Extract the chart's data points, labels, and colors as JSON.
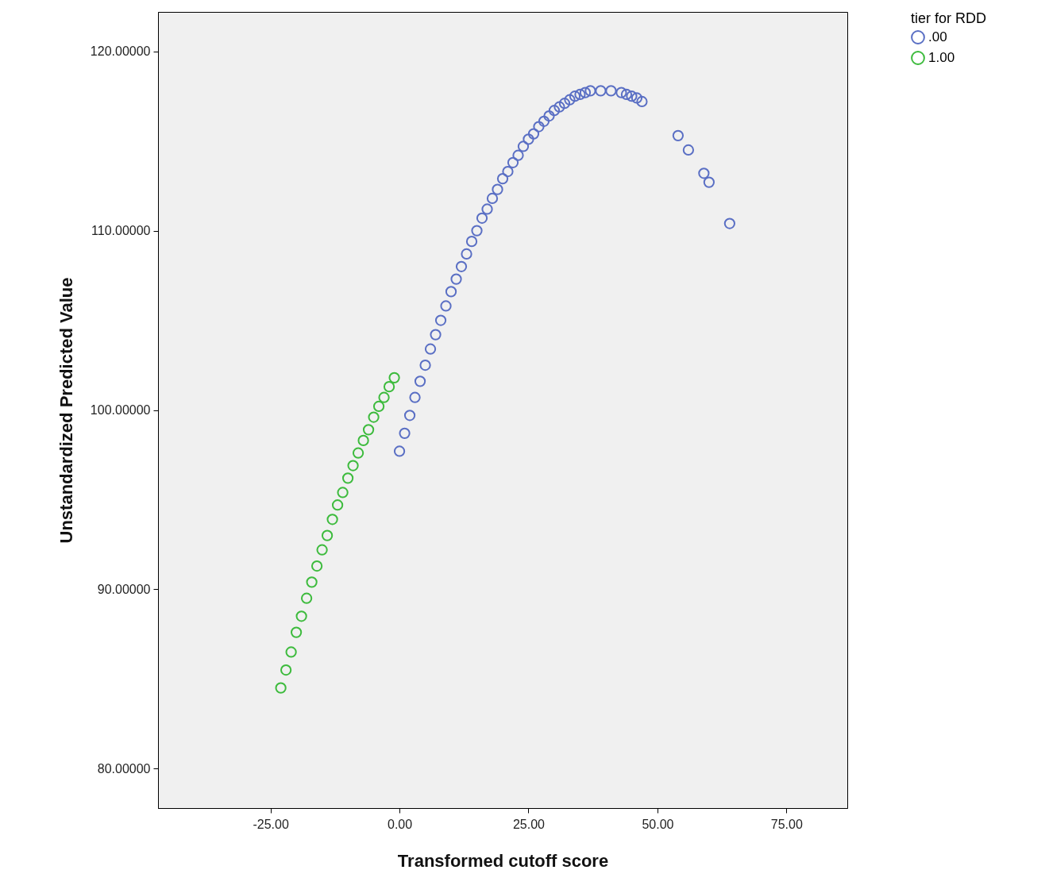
{
  "chart_data": {
    "type": "scatter",
    "xlabel": "Transformed cutoff score",
    "ylabel": "Unstandardized Predicted Value",
    "legend_title": "tier for RDD",
    "legend": "top right",
    "marker": "circle",
    "grid": false,
    "xlim": [
      -46.8,
      86.8
    ],
    "ylim": [
      77.8,
      122.2
    ],
    "xticks": [
      {
        "value": -25,
        "label": "-25.00"
      },
      {
        "value": 0,
        "label": "0.00"
      },
      {
        "value": 25,
        "label": "25.00"
      },
      {
        "value": 50,
        "label": "50.00"
      },
      {
        "value": 75,
        "label": "75.00"
      }
    ],
    "yticks": [
      {
        "value": 80,
        "label": "80.00000"
      },
      {
        "value": 90,
        "label": "90.00000"
      },
      {
        "value": 100,
        "label": "100.00000"
      },
      {
        "value": 110,
        "label": "110.00000"
      },
      {
        "value": 120,
        "label": "120.00000"
      }
    ],
    "series": [
      {
        "name": ".00",
        "color": "#5a6fc4",
        "x": [
          0,
          1,
          2,
          3,
          4,
          5,
          6,
          7,
          8,
          9,
          10,
          11,
          12,
          13,
          14,
          15,
          16,
          17,
          18,
          19,
          20,
          21,
          22,
          23,
          24,
          25,
          26,
          27,
          28,
          29,
          30,
          31,
          32,
          33,
          34,
          35,
          36,
          37,
          39,
          41,
          43,
          44,
          45,
          46,
          47,
          54,
          56,
          59,
          60,
          64
        ],
        "values": [
          97.7,
          98.7,
          99.7,
          100.7,
          101.6,
          102.5,
          103.4,
          104.2,
          105.0,
          105.8,
          106.6,
          107.3,
          108.0,
          108.7,
          109.4,
          110.0,
          110.7,
          111.2,
          111.8,
          112.3,
          112.9,
          113.3,
          113.8,
          114.2,
          114.7,
          115.1,
          115.4,
          115.8,
          116.1,
          116.4,
          116.7,
          116.9,
          117.1,
          117.3,
          117.5,
          117.6,
          117.7,
          117.8,
          117.8,
          117.8,
          117.7,
          117.6,
          117.5,
          117.4,
          117.2,
          115.3,
          114.5,
          113.2,
          112.7,
          110.4
        ]
      },
      {
        "name": "1.00",
        "color": "#3dbb3d",
        "x": [
          -23,
          -22,
          -21,
          -20,
          -19,
          -18,
          -17,
          -16,
          -15,
          -14,
          -13,
          -12,
          -11,
          -10,
          -9,
          -8,
          -7,
          -6,
          -5,
          -4,
          -3,
          -2,
          -1
        ],
        "values": [
          84.5,
          85.5,
          86.5,
          87.6,
          88.5,
          89.5,
          90.4,
          91.3,
          92.2,
          93.0,
          93.9,
          94.7,
          95.4,
          96.2,
          96.9,
          97.6,
          98.3,
          98.9,
          99.6,
          100.2,
          100.7,
          101.3,
          101.8
        ]
      }
    ]
  }
}
